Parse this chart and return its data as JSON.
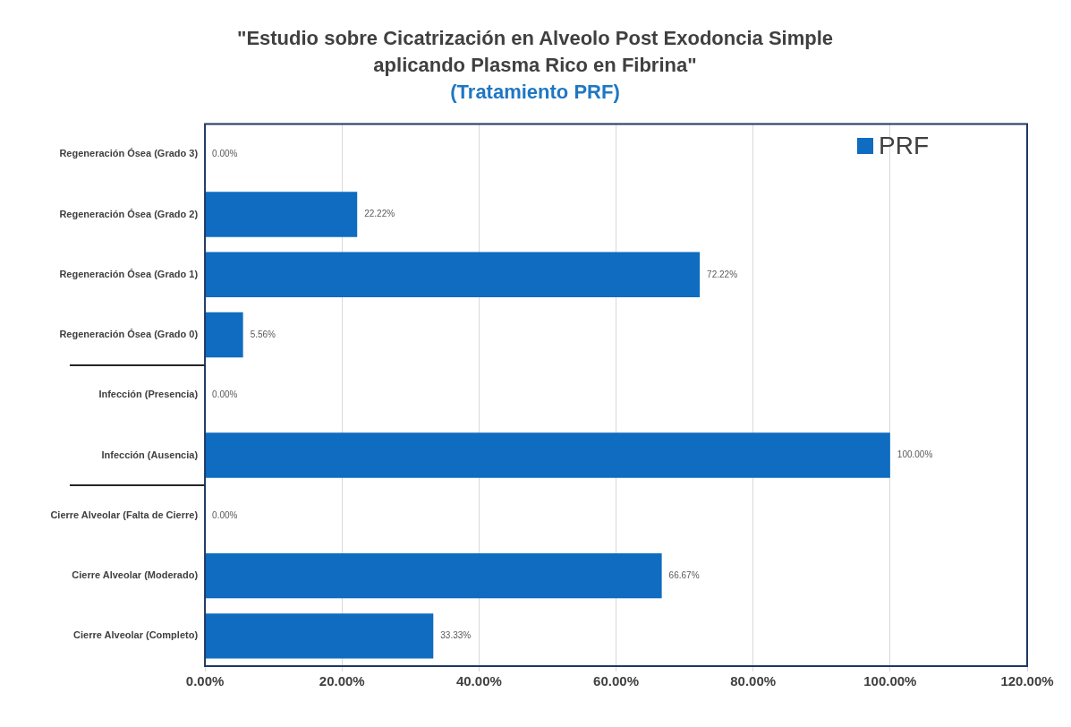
{
  "chart_data": {
    "type": "bar",
    "orientation": "horizontal",
    "title": "\"Estudio sobre Cicatrización en Alveolo Post Exodoncia Simple aplicando Plasma Rico en Fibrina\"",
    "subtitle": "(Tratamiento PRF)",
    "categories": [
      "Regeneración Ósea (Grado 3)",
      "Regeneración Ósea (Grado 2)",
      "Regeneración Ósea (Grado 1)",
      "Regeneración Ósea (Grado 0)",
      "Infección (Presencia)",
      "Infección (Ausencia)",
      "Cierre Alveolar (Falta de Cierre)",
      "Cierre Alveolar (Moderado)",
      "Cierre Alveolar (Completo)"
    ],
    "series": [
      {
        "name": "PRF",
        "color": "#0f6cc0",
        "values": [
          0,
          22.22,
          72.22,
          5.56,
          0,
          100,
          0,
          66.67,
          33.33
        ],
        "value_labels": [
          "0.00%",
          "22.22%",
          "72.22%",
          "5.56%",
          "0.00%",
          "100.00%",
          "0.00%",
          "66.67%",
          "33.33%"
        ]
      }
    ],
    "xlim": [
      0,
      120
    ],
    "xticks": [
      {
        "value": 0,
        "label": "0.00%"
      },
      {
        "value": 20,
        "label": "20.00%"
      },
      {
        "value": 40,
        "label": "40.00%"
      },
      {
        "value": 60,
        "label": "60.00%"
      },
      {
        "value": 80,
        "label": "80.00%"
      },
      {
        "value": 100,
        "label": "100.00%"
      },
      {
        "value": 120,
        "label": "120.00%"
      }
    ],
    "grid": "x",
    "legend": "top right"
  }
}
